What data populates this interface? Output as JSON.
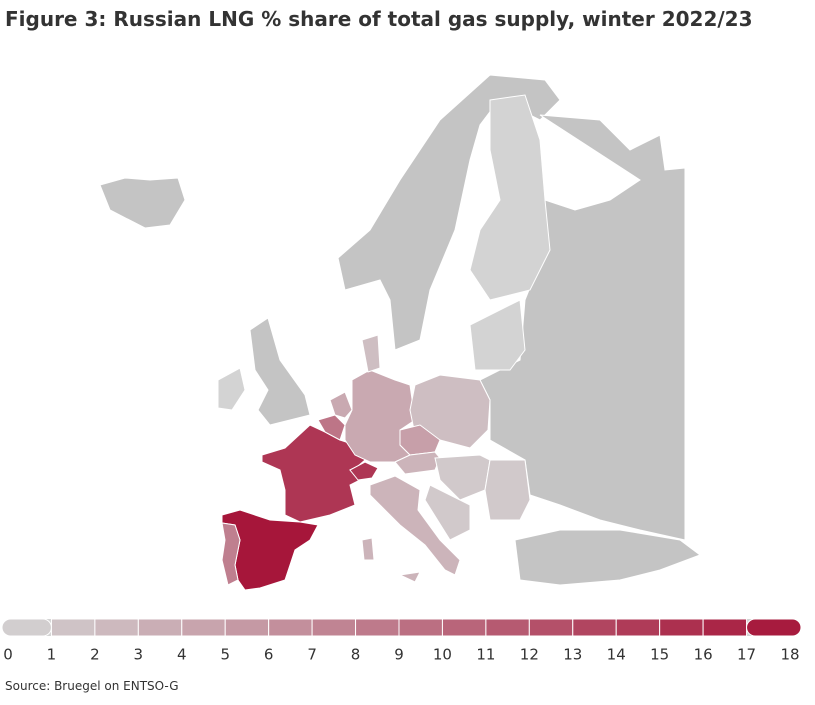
{
  "map": {
    "title": "Figure 3: Russian LNG % share of total gas supply, winter 2022/23",
    "regions": {
      "values": [
        18,
        8,
        15,
        9,
        4,
        4,
        15,
        2,
        2,
        5,
        3,
        3,
        3,
        3,
        1,
        1,
        1,
        0,
        0,
        0
      ]
    },
    "scale_colors": [
      "#d3d3d3",
      "#a6163a"
    ],
    "no_data_color": "#c4c4c4",
    "legend": {
      "ticks": [
        0,
        1,
        2,
        3,
        4,
        5,
        6,
        7,
        8,
        9,
        10,
        11,
        12,
        13,
        14,
        15,
        16,
        17,
        18
      ]
    },
    "source": "Source: Bruegel on ENTSO-G"
  }
}
